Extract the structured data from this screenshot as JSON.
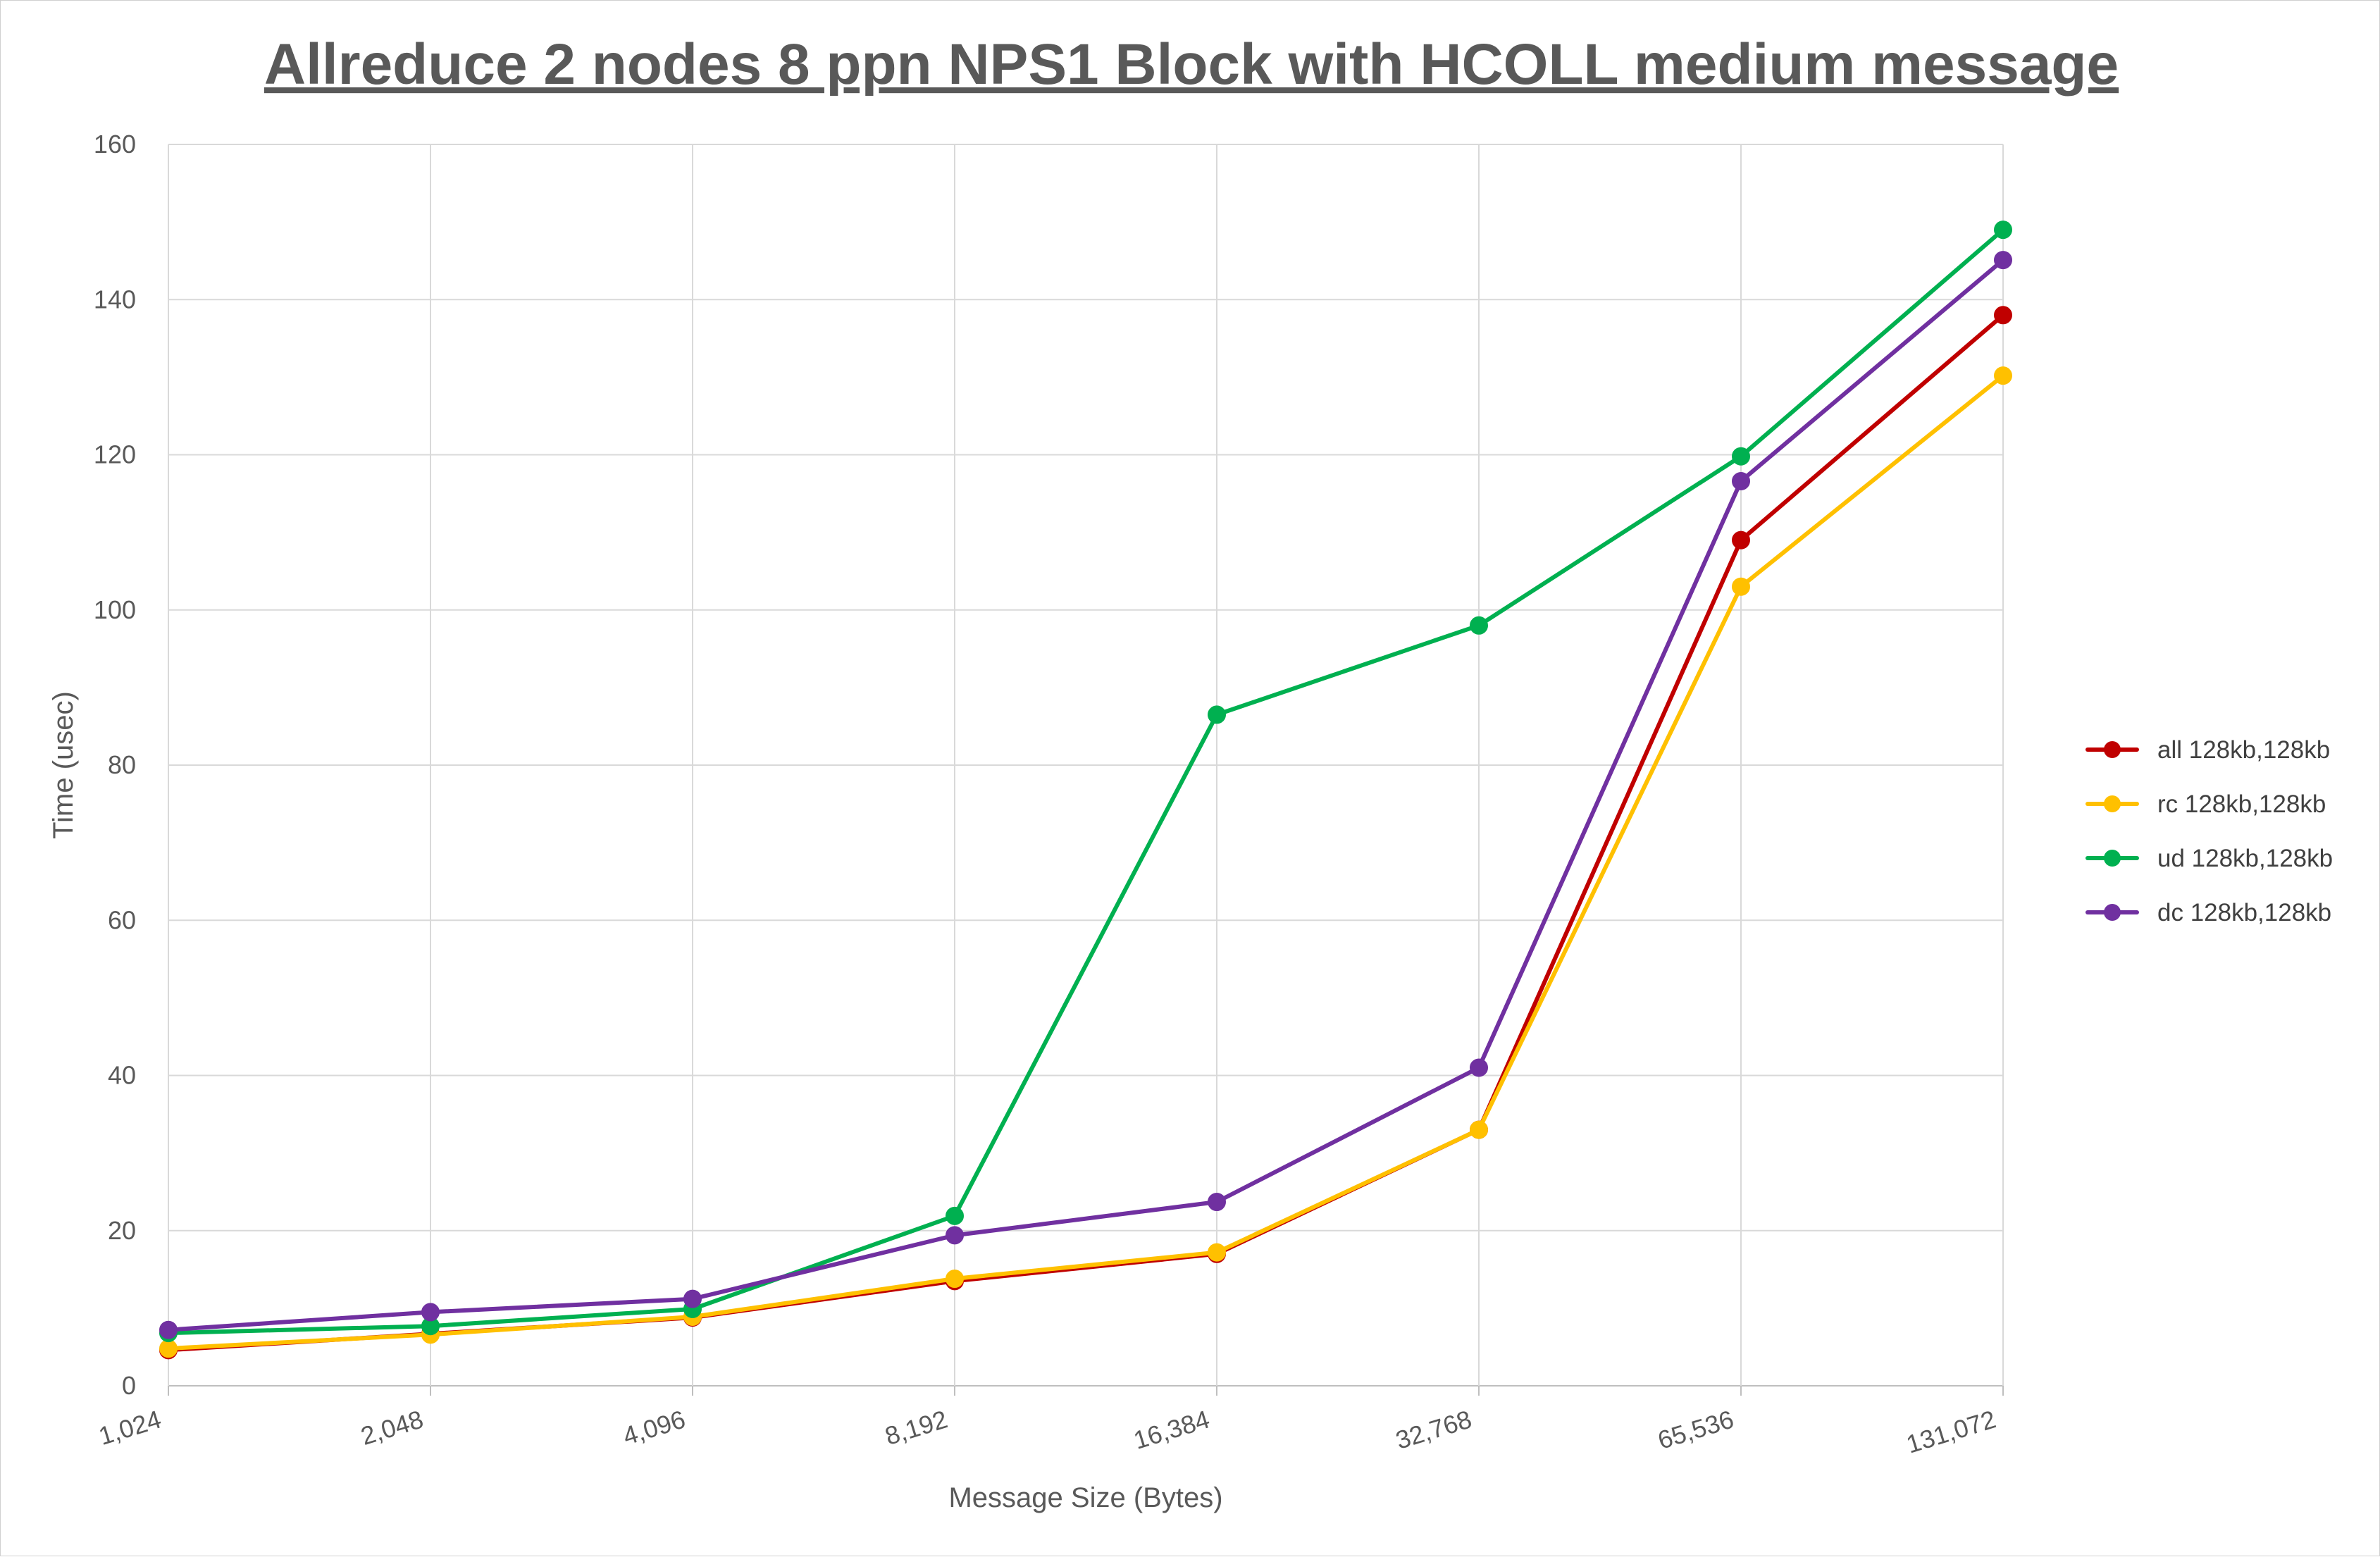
{
  "chart_data": {
    "type": "line",
    "title": "Allreduce 2 nodes 8 ppn NPS1 Block with HCOLL medium message",
    "xlabel": "Message Size (Bytes)",
    "ylabel": "Time (usec)",
    "categories": [
      "1,024",
      "2,048",
      "4,096",
      "8,192",
      "16,384",
      "32,768",
      "65,536",
      "131,072"
    ],
    "ylim": [
      0,
      160
    ],
    "yticks": [
      "0",
      "20",
      "40",
      "60",
      "80",
      "100",
      "120",
      "140",
      "160"
    ],
    "grid": true,
    "legend_position": "right",
    "series": [
      {
        "name": "all 128kb,128kb",
        "color": "#C00000",
        "values": [
          4.6,
          6.7,
          8.8,
          13.5,
          17.0,
          33.0,
          109.0,
          138.0
        ]
      },
      {
        "name": "rc 128kb,128kb",
        "color": "#FFC000",
        "values": [
          4.8,
          6.6,
          8.9,
          13.8,
          17.2,
          33.0,
          103.0,
          130.2
        ]
      },
      {
        "name": "ud 128kb,128kb",
        "color": "#00B050",
        "values": [
          6.8,
          7.7,
          9.9,
          21.9,
          86.5,
          98.0,
          119.8,
          149.0
        ]
      },
      {
        "name": "dc 128kb,128kb",
        "color": "#7030A0",
        "values": [
          7.2,
          9.5,
          11.2,
          19.4,
          23.7,
          41.0,
          116.6,
          145.1
        ]
      }
    ]
  }
}
